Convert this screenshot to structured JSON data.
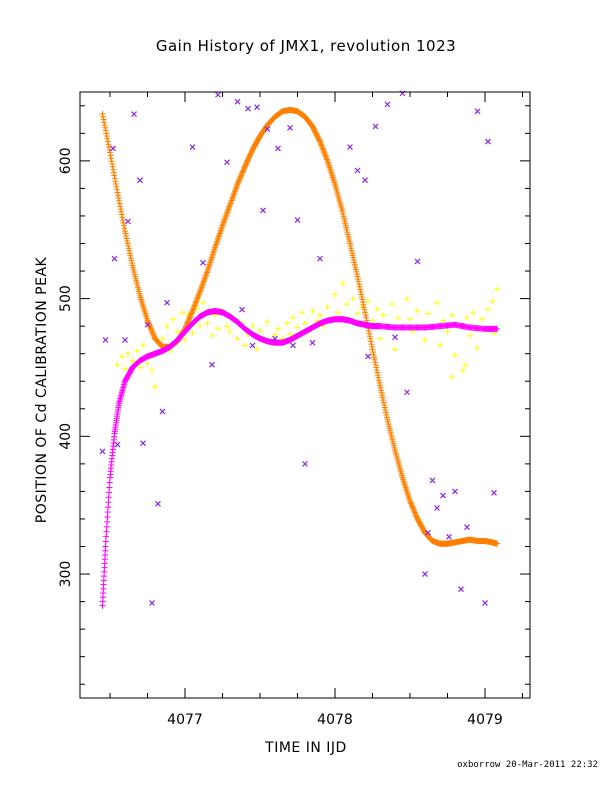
{
  "page": {
    "title": "Gain History of JMX1, revolution 1023",
    "footer": "oxborrow 20-Mar-2011 22:32"
  },
  "chart_data": {
    "type": "scatter",
    "title": "Gain History of JMX1, revolution 1023",
    "xlabel": "TIME IN IJD",
    "ylabel": "POSITION OF Cd CALIBRATION PEAK",
    "xlim": [
      4076.3,
      4079.3
    ],
    "ylim": [
      210,
      650
    ],
    "x_ticks": [
      4077,
      4078,
      4079
    ],
    "y_ticks": [
      300,
      400,
      500,
      600
    ],
    "grid": false,
    "legend": "none",
    "colors": {
      "purple": "#8a2be2",
      "yellow": "#ffff00",
      "orange": "#ff8000",
      "magenta": "#ff00ff",
      "axis": "#000000"
    },
    "series": [
      {
        "marker": "x",
        "color": "#8a2be2",
        "points": [
          [
            4076.45,
            389
          ],
          [
            4076.47,
            470
          ],
          [
            4076.52,
            609
          ],
          [
            4076.53,
            529
          ],
          [
            4076.55,
            394
          ],
          [
            4076.62,
            556
          ],
          [
            4076.66,
            634
          ],
          [
            4076.7,
            586
          ],
          [
            4076.72,
            395
          ],
          [
            4076.75,
            481
          ],
          [
            4076.78,
            279
          ],
          [
            4076.82,
            351
          ],
          [
            4076.85,
            418
          ],
          [
            4076.88,
            497
          ],
          [
            4077.05,
            610
          ],
          [
            4077.12,
            526
          ],
          [
            4077.18,
            452
          ],
          [
            4077.22,
            648
          ],
          [
            4077.28,
            599
          ],
          [
            4077.35,
            643
          ],
          [
            4077.38,
            492
          ],
          [
            4077.42,
            638
          ],
          [
            4077.45,
            466
          ],
          [
            4077.48,
            639
          ],
          [
            4077.52,
            564
          ],
          [
            4077.55,
            623
          ],
          [
            4077.62,
            609
          ],
          [
            4077.7,
            624
          ],
          [
            4077.72,
            466
          ],
          [
            4077.75,
            557
          ],
          [
            4077.8,
            380
          ],
          [
            4077.85,
            468
          ],
          [
            4077.9,
            529
          ],
          [
            4078.1,
            610
          ],
          [
            4078.15,
            593
          ],
          [
            4078.2,
            586
          ],
          [
            4078.27,
            625
          ],
          [
            4078.35,
            641
          ],
          [
            4078.4,
            472
          ],
          [
            4078.45,
            649
          ],
          [
            4078.48,
            432
          ],
          [
            4078.55,
            527
          ],
          [
            4078.6,
            300
          ],
          [
            4078.62,
            330
          ],
          [
            4078.65,
            368
          ],
          [
            4078.68,
            348
          ],
          [
            4078.72,
            357
          ],
          [
            4078.76,
            327
          ],
          [
            4078.8,
            360
          ],
          [
            4078.84,
            289
          ],
          [
            4078.88,
            334
          ],
          [
            4078.95,
            636
          ],
          [
            4079.0,
            279
          ],
          [
            4079.02,
            614
          ],
          [
            4079.06,
            359
          ],
          [
            4076.6,
            470
          ],
          [
            4078.22,
            458
          ],
          [
            4077.6,
            471
          ]
        ]
      },
      {
        "marker": "+",
        "color": "#ffff00",
        "points": [
          [
            4076.55,
            452
          ],
          [
            4076.58,
            458
          ],
          [
            4076.6,
            449
          ],
          [
            4076.62,
            460
          ],
          [
            4076.65,
            455
          ],
          [
            4076.68,
            462
          ],
          [
            4076.7,
            450
          ],
          [
            4076.72,
            466
          ],
          [
            4076.75,
            453
          ],
          [
            4076.78,
            448
          ],
          [
            4076.8,
            436
          ],
          [
            4076.82,
            468
          ],
          [
            4076.85,
            471
          ],
          [
            4076.88,
            480
          ],
          [
            4076.9,
            462
          ],
          [
            4076.92,
            485
          ],
          [
            4076.95,
            476
          ],
          [
            4076.98,
            490
          ],
          [
            4077.0,
            470
          ],
          [
            4077.02,
            488
          ],
          [
            4077.05,
            475
          ],
          [
            4077.08,
            493
          ],
          [
            4077.1,
            480
          ],
          [
            4077.12,
            497
          ],
          [
            4077.15,
            482
          ],
          [
            4077.18,
            473
          ],
          [
            4077.2,
            488
          ],
          [
            4077.22,
            478
          ],
          [
            4077.25,
            491
          ],
          [
            4077.28,
            480
          ],
          [
            4077.3,
            476
          ],
          [
            4077.32,
            485
          ],
          [
            4077.35,
            471
          ],
          [
            4077.38,
            482
          ],
          [
            4077.4,
            466
          ],
          [
            4077.42,
            474
          ],
          [
            4077.45,
            480
          ],
          [
            4077.48,
            463
          ],
          [
            4077.5,
            477
          ],
          [
            4077.52,
            470
          ],
          [
            4077.55,
            483
          ],
          [
            4077.58,
            468
          ],
          [
            4077.6,
            474
          ],
          [
            4077.62,
            478
          ],
          [
            4077.65,
            471
          ],
          [
            4077.68,
            482
          ],
          [
            4077.7,
            474
          ],
          [
            4077.72,
            486
          ],
          [
            4077.75,
            479
          ],
          [
            4077.78,
            490
          ],
          [
            4077.8,
            482
          ],
          [
            4077.82,
            476
          ],
          [
            4077.85,
            491
          ],
          [
            4077.88,
            484
          ],
          [
            4077.9,
            488
          ],
          [
            4077.92,
            480
          ],
          [
            4077.95,
            494
          ],
          [
            4077.98,
            485
          ],
          [
            4078.0,
            503
          ],
          [
            4078.02,
            490
          ],
          [
            4078.05,
            511
          ],
          [
            4078.08,
            496
          ],
          [
            4078.1,
            485
          ],
          [
            4078.12,
            500
          ],
          [
            4078.15,
            489
          ],
          [
            4078.18,
            494
          ],
          [
            4078.2,
            481
          ],
          [
            4078.22,
            498
          ],
          [
            4078.25,
            484
          ],
          [
            4078.28,
            492
          ],
          [
            4078.3,
            471
          ],
          [
            4078.32,
            488
          ],
          [
            4078.35,
            480
          ],
          [
            4078.38,
            496
          ],
          [
            4078.4,
            463
          ],
          [
            4078.42,
            486
          ],
          [
            4078.45,
            479
          ],
          [
            4078.48,
            500
          ],
          [
            4078.5,
            485
          ],
          [
            4078.52,
            476
          ],
          [
            4078.55,
            491
          ],
          [
            4078.58,
            480
          ],
          [
            4078.6,
            470
          ],
          [
            4078.62,
            489
          ],
          [
            4078.65,
            479
          ],
          [
            4078.68,
            497
          ],
          [
            4078.7,
            466
          ],
          [
            4078.72,
            484
          ],
          [
            4078.75,
            476
          ],
          [
            4078.78,
            488
          ],
          [
            4078.8,
            459
          ],
          [
            4078.82,
            480
          ],
          [
            4078.85,
            448
          ],
          [
            4078.88,
            486
          ],
          [
            4078.9,
            473
          ],
          [
            4078.92,
            490
          ],
          [
            4078.95,
            464
          ],
          [
            4078.98,
            485
          ],
          [
            4079.0,
            477
          ],
          [
            4079.02,
            492
          ],
          [
            4079.05,
            498
          ],
          [
            4079.06,
            475
          ],
          [
            4079.08,
            507
          ],
          [
            4078.78,
            443
          ],
          [
            4078.87,
            452
          ]
        ]
      },
      {
        "marker": "+",
        "color": "#ff8000",
        "curve": [
          [
            4076.45,
            634
          ],
          [
            4076.5,
            606
          ],
          [
            4076.55,
            577
          ],
          [
            4076.6,
            549
          ],
          [
            4076.65,
            524
          ],
          [
            4076.7,
            502
          ],
          [
            4076.75,
            484
          ],
          [
            4076.8,
            471
          ],
          [
            4076.85,
            465
          ],
          [
            4076.9,
            465
          ],
          [
            4076.95,
            469
          ],
          [
            4077.0,
            478
          ],
          [
            4077.05,
            491
          ],
          [
            4077.1,
            505
          ],
          [
            4077.15,
            520
          ],
          [
            4077.2,
            537
          ],
          [
            4077.25,
            553
          ],
          [
            4077.3,
            568
          ],
          [
            4077.35,
            583
          ],
          [
            4077.4,
            596
          ],
          [
            4077.45,
            608
          ],
          [
            4077.5,
            618
          ],
          [
            4077.55,
            626
          ],
          [
            4077.6,
            632
          ],
          [
            4077.65,
            636
          ],
          [
            4077.7,
            637
          ],
          [
            4077.75,
            636
          ],
          [
            4077.8,
            632
          ],
          [
            4077.85,
            625
          ],
          [
            4077.9,
            614
          ],
          [
            4077.95,
            600
          ],
          [
            4078.0,
            583
          ],
          [
            4078.05,
            563
          ],
          [
            4078.1,
            540
          ],
          [
            4078.15,
            516
          ],
          [
            4078.2,
            490
          ],
          [
            4078.25,
            463
          ],
          [
            4078.3,
            437
          ],
          [
            4078.35,
            412
          ],
          [
            4078.4,
            390
          ],
          [
            4078.45,
            370
          ],
          [
            4078.5,
            353
          ],
          [
            4078.55,
            340
          ],
          [
            4078.6,
            330
          ],
          [
            4078.65,
            324
          ],
          [
            4078.7,
            322
          ],
          [
            4078.75,
            322
          ],
          [
            4078.8,
            323
          ],
          [
            4078.85,
            324
          ],
          [
            4078.9,
            325
          ],
          [
            4078.95,
            324
          ],
          [
            4079.0,
            324
          ],
          [
            4079.05,
            323
          ],
          [
            4079.08,
            322
          ]
        ]
      },
      {
        "marker": "+",
        "color": "#ff00ff",
        "curve": [
          [
            4076.45,
            277
          ],
          [
            4076.47,
            320
          ],
          [
            4076.5,
            370
          ],
          [
            4076.53,
            402
          ],
          [
            4076.56,
            424
          ],
          [
            4076.6,
            440
          ],
          [
            4076.65,
            450
          ],
          [
            4076.7,
            455
          ],
          [
            4076.75,
            458
          ],
          [
            4076.8,
            460
          ],
          [
            4076.85,
            462
          ],
          [
            4076.9,
            465
          ],
          [
            4076.95,
            470
          ],
          [
            4077.0,
            476
          ],
          [
            4077.05,
            482
          ],
          [
            4077.1,
            487
          ],
          [
            4077.15,
            490
          ],
          [
            4077.2,
            491
          ],
          [
            4077.25,
            490
          ],
          [
            4077.3,
            487
          ],
          [
            4077.35,
            483
          ],
          [
            4077.4,
            478
          ],
          [
            4077.45,
            474
          ],
          [
            4077.5,
            471
          ],
          [
            4077.55,
            469
          ],
          [
            4077.6,
            468
          ],
          [
            4077.65,
            468
          ],
          [
            4077.7,
            470
          ],
          [
            4077.75,
            473
          ],
          [
            4077.8,
            476
          ],
          [
            4077.85,
            479
          ],
          [
            4077.9,
            482
          ],
          [
            4077.95,
            484
          ],
          [
            4078.0,
            485
          ],
          [
            4078.05,
            485
          ],
          [
            4078.1,
            484
          ],
          [
            4078.15,
            482
          ],
          [
            4078.2,
            481
          ],
          [
            4078.25,
            480
          ],
          [
            4078.3,
            480
          ],
          [
            4078.4,
            479
          ],
          [
            4078.5,
            479
          ],
          [
            4078.6,
            479
          ],
          [
            4078.7,
            480
          ],
          [
            4078.8,
            481
          ],
          [
            4078.9,
            479
          ],
          [
            4079.0,
            478
          ],
          [
            4079.08,
            478
          ]
        ]
      }
    ]
  }
}
